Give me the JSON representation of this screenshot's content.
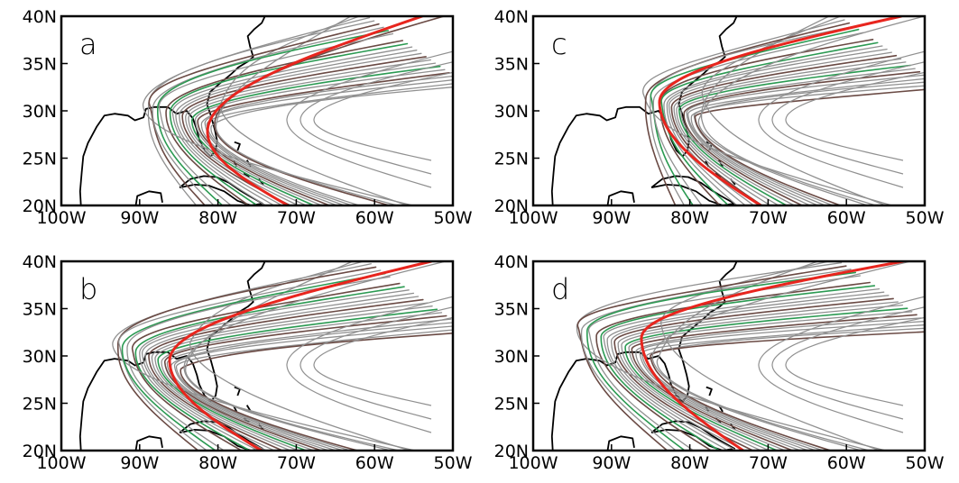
{
  "figure": {
    "lon_range": [
      -100,
      -50
    ],
    "lat_range": [
      20,
      40
    ],
    "x_tick_labels": [
      "100W",
      "90W",
      "80W",
      "70W",
      "60W",
      "50W"
    ],
    "y_tick_labels": [
      "20N",
      "25N",
      "30N",
      "35N",
      "40N"
    ],
    "colors": {
      "ensemble_member": "#909090",
      "dark_member": "#6a4a44",
      "green_member": "#2b9a52",
      "ensemble_mean": "#e8251e",
      "coastline": "#000000"
    },
    "panels": [
      {
        "letter": "a"
      },
      {
        "letter": "c"
      },
      {
        "letter": "b"
      },
      {
        "letter": "d"
      }
    ]
  }
}
